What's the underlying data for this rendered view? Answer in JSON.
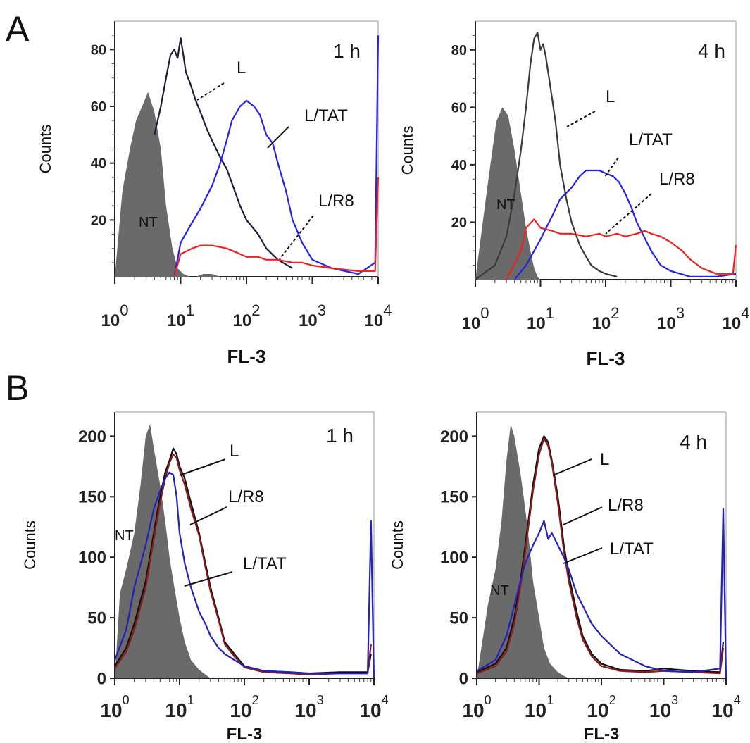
{
  "figure": {
    "panel_labels": [
      "A",
      "B"
    ]
  },
  "chart_data": [
    {
      "type": "area",
      "panel": "A",
      "time_label": "1 h",
      "xlabel": "FL-3",
      "ylabel": "Counts",
      "xscale": "log",
      "xlim": [
        1,
        10000
      ],
      "ylim": [
        0,
        90
      ],
      "yticks": [
        20,
        40,
        60,
        80
      ],
      "xticks_exp": [
        "0",
        "1",
        "2",
        "3",
        "4"
      ],
      "xtick_base": "10",
      "series": [
        {
          "name": "NT",
          "color": "#6a6a6a",
          "fill": true,
          "x": [
            1,
            1.3,
            1.7,
            2.1,
            2.6,
            3.2,
            4,
            5,
            6,
            7.5,
            9,
            11,
            14,
            17,
            22,
            30,
            40
          ],
          "y": [
            0,
            30,
            45,
            55,
            60,
            65,
            58,
            45,
            25,
            10,
            3,
            1,
            0,
            0,
            1,
            1,
            0
          ]
        },
        {
          "name": "L",
          "color": "#1c1c3a",
          "x": [
            4,
            5,
            6,
            7,
            8,
            9,
            10,
            11,
            12,
            14,
            17,
            20,
            25,
            30,
            40,
            50,
            60,
            80,
            100,
            150,
            200,
            300,
            500
          ],
          "y": [
            50,
            60,
            70,
            78,
            80,
            77,
            84,
            78,
            72,
            68,
            62,
            58,
            52,
            48,
            42,
            38,
            33,
            25,
            20,
            15,
            10,
            6,
            3
          ]
        },
        {
          "name": "L/TAT",
          "color": "#2222ee",
          "x": [
            8,
            10,
            14,
            20,
            30,
            40,
            50,
            60,
            80,
            100,
            130,
            160,
            200,
            250,
            300,
            400,
            500,
            700,
            1000,
            2000,
            5000,
            9000,
            10000
          ],
          "y": [
            0,
            12,
            18,
            24,
            32,
            40,
            48,
            55,
            60,
            62,
            60,
            57,
            50,
            47,
            40,
            30,
            20,
            12,
            6,
            3,
            1,
            5,
            85
          ]
        },
        {
          "name": "L/R8",
          "color": "#ee2222",
          "x": [
            8,
            10,
            15,
            20,
            30,
            50,
            80,
            100,
            150,
            200,
            300,
            500,
            700,
            1000,
            2000,
            5000,
            9000,
            10000
          ],
          "y": [
            0,
            8,
            10,
            11,
            11,
            10,
            8,
            7,
            7,
            6,
            6,
            5,
            5,
            4,
            3,
            2,
            2,
            35
          ]
        }
      ],
      "annotations": [
        "L",
        "L/TAT",
        "L/R8",
        "NT"
      ]
    },
    {
      "type": "area",
      "panel": "A",
      "time_label": "4 h",
      "xlabel": "FL-3",
      "ylabel": "Counts",
      "xscale": "log",
      "xlim": [
        1,
        10000
      ],
      "ylim": [
        0,
        90
      ],
      "yticks": [
        20,
        40,
        60,
        80
      ],
      "xticks_exp": [
        "0",
        "1",
        "2",
        "3",
        "4"
      ],
      "xtick_base": "10",
      "series": [
        {
          "name": "NT",
          "color": "#6a6a6a",
          "fill": true,
          "x": [
            1,
            1.3,
            1.7,
            2.1,
            2.6,
            3.2,
            4,
            5,
            6,
            7,
            8,
            9,
            10
          ],
          "y": [
            0,
            20,
            40,
            55,
            60,
            57,
            45,
            30,
            18,
            10,
            4,
            1,
            0
          ]
        },
        {
          "name": "L",
          "color": "#3a3a3a",
          "x": [
            1,
            2,
            3,
            4,
            5,
            6,
            7,
            8,
            9,
            10,
            11,
            12,
            14,
            17,
            20,
            25,
            30,
            40,
            50,
            60,
            80,
            100,
            150
          ],
          "y": [
            0,
            5,
            15,
            30,
            45,
            60,
            75,
            84,
            86,
            80,
            82,
            78,
            68,
            55,
            40,
            28,
            20,
            12,
            8,
            5,
            3,
            2,
            1
          ]
        },
        {
          "name": "L/TAT",
          "color": "#2222ee",
          "x": [
            4,
            6,
            8,
            10,
            15,
            20,
            30,
            40,
            50,
            60,
            80,
            100,
            130,
            160,
            200,
            250,
            300,
            500,
            700,
            1000,
            2000,
            5000,
            10000
          ],
          "y": [
            0,
            5,
            10,
            14,
            22,
            28,
            32,
            36,
            38,
            38,
            38,
            37,
            36,
            34,
            30,
            25,
            20,
            10,
            5,
            3,
            1,
            1,
            2
          ]
        },
        {
          "name": "L/R8",
          "color": "#ee2222",
          "x": [
            3,
            5,
            6,
            8,
            10,
            15,
            20,
            30,
            50,
            80,
            100,
            150,
            200,
            300,
            400,
            500,
            700,
            1000,
            1500,
            2000,
            3000,
            5000,
            9000,
            10000
          ],
          "y": [
            0,
            10,
            18,
            21,
            18,
            17,
            16,
            16,
            15,
            16,
            15,
            16,
            15,
            16,
            17,
            16,
            15,
            13,
            10,
            7,
            4,
            2,
            2,
            12
          ]
        }
      ],
      "annotations": [
        "L",
        "L/TAT",
        "L/R8",
        "NT"
      ]
    },
    {
      "type": "area",
      "panel": "B",
      "time_label": "1 h",
      "xlabel": "FL-3",
      "ylabel": "Counts",
      "xscale": "log",
      "xlim": [
        1,
        10000
      ],
      "ylim": [
        0,
        220
      ],
      "yticks": [
        0,
        50,
        100,
        150,
        200
      ],
      "xticks_exp": [
        "0",
        "1",
        "2",
        "3",
        "4"
      ],
      "xtick_base": "10",
      "series": [
        {
          "name": "NT",
          "color": "#6a6a6a",
          "fill": true,
          "x": [
            1,
            1.2,
            1.5,
            2,
            2.5,
            3,
            3.5,
            4,
            5,
            6,
            7,
            8,
            10,
            12,
            15,
            20,
            25,
            30
          ],
          "y": [
            0,
            70,
            90,
            120,
            160,
            200,
            210,
            190,
            160,
            130,
            100,
            80,
            50,
            30,
            15,
            7,
            3,
            0
          ]
        },
        {
          "name": "L",
          "color": "#111111",
          "x": [
            1,
            1.5,
            2,
            3,
            4,
            5,
            6,
            7,
            8,
            9,
            10,
            12,
            15,
            20,
            25,
            30,
            40,
            50,
            70,
            100,
            200,
            500,
            1000,
            3000,
            8000,
            9000
          ],
          "y": [
            10,
            25,
            45,
            80,
            120,
            150,
            170,
            180,
            190,
            185,
            175,
            165,
            145,
            120,
            95,
            75,
            50,
            30,
            20,
            10,
            6,
            5,
            4,
            5,
            5,
            20
          ]
        },
        {
          "name": "L/R8",
          "color": "#8b1a1a",
          "x": [
            1,
            1.5,
            2,
            3,
            4,
            5,
            6,
            7,
            8,
            9,
            10,
            12,
            15,
            20,
            25,
            30,
            40,
            50,
            70,
            100,
            200,
            500,
            1000,
            3000,
            8000,
            9000
          ],
          "y": [
            8,
            22,
            40,
            75,
            115,
            145,
            165,
            178,
            185,
            182,
            172,
            160,
            140,
            118,
            92,
            72,
            48,
            28,
            18,
            9,
            5,
            4,
            3,
            4,
            4,
            28
          ]
        },
        {
          "name": "L/TAT",
          "color": "#2222bb",
          "x": [
            1,
            1.5,
            2,
            3,
            4,
            5,
            6,
            7,
            8,
            9,
            10,
            12,
            15,
            20,
            25,
            30,
            40,
            50,
            70,
            100,
            200,
            500,
            1000,
            3000,
            8000,
            9000,
            10000
          ],
          "y": [
            15,
            40,
            75,
            110,
            140,
            155,
            165,
            170,
            168,
            150,
            120,
            95,
            75,
            55,
            45,
            35,
            25,
            20,
            15,
            10,
            6,
            5,
            4,
            4,
            4,
            130,
            0
          ]
        }
      ],
      "annotations": [
        "L",
        "L/R8",
        "L/TAT",
        "NT"
      ]
    },
    {
      "type": "area",
      "panel": "B",
      "time_label": "4 h",
      "xlabel": "FL-3",
      "ylabel": "Counts",
      "xscale": "log",
      "xlim": [
        1,
        10000
      ],
      "ylim": [
        0,
        220
      ],
      "yticks": [
        0,
        50,
        100,
        150,
        200
      ],
      "xticks_exp": [
        "0",
        "1",
        "2",
        "3",
        "4"
      ],
      "xtick_base": "10",
      "series": [
        {
          "name": "NT",
          "color": "#6a6a6a",
          "fill": true,
          "x": [
            1,
            1.5,
            2,
            2.5,
            3,
            3.5,
            4,
            5,
            6,
            7,
            8,
            10,
            12,
            15,
            20,
            25,
            30
          ],
          "y": [
            0,
            60,
            90,
            130,
            180,
            210,
            200,
            170,
            140,
            110,
            80,
            50,
            25,
            12,
            5,
            2,
            0
          ]
        },
        {
          "name": "L",
          "color": "#111111",
          "x": [
            1,
            2,
            3,
            4,
            5,
            6,
            8,
            10,
            12,
            14,
            16,
            20,
            25,
            30,
            40,
            50,
            70,
            100,
            200,
            500,
            1000,
            3000,
            8000,
            9000
          ],
          "y": [
            5,
            12,
            25,
            50,
            80,
            110,
            160,
            190,
            200,
            195,
            180,
            150,
            110,
            85,
            55,
            35,
            20,
            12,
            7,
            6,
            8,
            6,
            5,
            30
          ]
        },
        {
          "name": "L/R8",
          "color": "#8b1a1a",
          "x": [
            1,
            2,
            3,
            4,
            5,
            6,
            8,
            10,
            12,
            14,
            16,
            20,
            25,
            30,
            40,
            50,
            70,
            100,
            200,
            500,
            1000,
            3000,
            8000,
            9000
          ],
          "y": [
            4,
            10,
            22,
            45,
            75,
            105,
            155,
            185,
            198,
            192,
            178,
            145,
            105,
            80,
            50,
            32,
            18,
            10,
            6,
            5,
            6,
            5,
            4,
            25
          ]
        },
        {
          "name": "L/TAT",
          "color": "#2222bb",
          "x": [
            1,
            2,
            3,
            4,
            5,
            6,
            8,
            10,
            12,
            14,
            16,
            20,
            25,
            30,
            40,
            50,
            70,
            100,
            200,
            500,
            1000,
            3000,
            8000,
            9000,
            10000
          ],
          "y": [
            6,
            15,
            35,
            60,
            80,
            95,
            110,
            120,
            130,
            115,
            120,
            110,
            100,
            90,
            70,
            60,
            45,
            35,
            20,
            10,
            6,
            5,
            8,
            140,
            0
          ]
        }
      ],
      "annotations": [
        "L",
        "L/R8",
        "L/TAT",
        "NT"
      ]
    }
  ]
}
